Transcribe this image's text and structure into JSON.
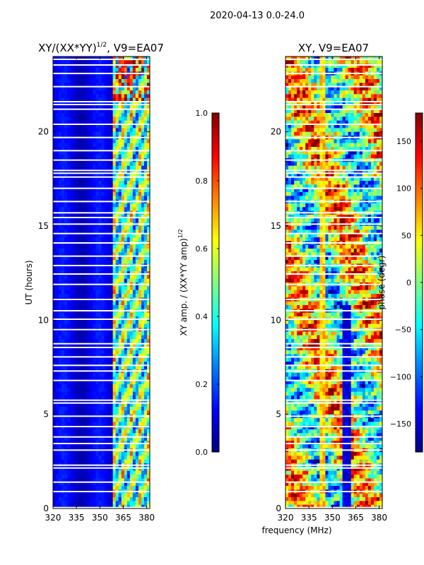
{
  "figure": {
    "suptitle": "2020-04-13 0.0-24.0",
    "shared_xlabel": "frequency (MHz)"
  },
  "colors": {
    "background": "#ffffff",
    "text": "#000000",
    "frame": "#000000",
    "gap_lines": "#ffffff"
  },
  "colormap": {
    "name": "jet",
    "stops": [
      "#00007f",
      "#0000ff",
      "#007fff",
      "#00ffff",
      "#7fff7f",
      "#ffff00",
      "#ff7f00",
      "#ff0000",
      "#7f0000"
    ]
  },
  "chart_data": [
    {
      "type": "heatmap",
      "title": "XY/(XX*YY)",
      "title_exponent": "1/2",
      "title_suffix": ", V9=EA07",
      "xlabel": "",
      "ylabel": "UT (hours)",
      "xlim": [
        320,
        382
      ],
      "ylim": [
        0,
        24
      ],
      "xticks": [
        320,
        335,
        350,
        365,
        380
      ],
      "yticks": [
        0,
        5,
        10,
        15,
        20
      ],
      "quantity": "amplitude",
      "bright_band_MHz": [
        359,
        382
      ],
      "colorbar": {
        "label": "XY amp. / (XX*YY amp)",
        "label_exponent": "1/2",
        "range": [
          0.0,
          1.0
        ],
        "ticks": [
          "0.0",
          "0.2",
          "0.4",
          "0.6",
          "0.8",
          "1.0"
        ],
        "tick_values": [
          0.0,
          0.2,
          0.4,
          0.6,
          0.8,
          1.0
        ]
      },
      "missing_rows_UT": [
        0.05,
        0.9,
        1.4,
        2.15,
        2.3,
        3.1,
        3.45,
        3.8,
        4.35,
        4.9,
        5.6,
        5.75,
        6.8,
        7.3,
        7.6,
        8.05,
        8.55,
        8.75,
        9.5,
        10.05,
        10.5,
        11.1,
        11.9,
        12.45,
        12.9,
        13.4,
        14.1,
        14.6,
        15.1,
        15.45,
        15.7,
        16.3,
        17.0,
        17.6,
        17.8,
        17.95,
        18.5,
        19.0,
        19.7,
        20.4,
        21.2,
        21.45,
        21.6,
        22.4,
        23.1,
        23.55,
        23.85
      ]
    },
    {
      "type": "heatmap",
      "title": "XY",
      "title_suffix": ", V9=EA07",
      "xlabel": "",
      "ylabel": "",
      "xlim": [
        320,
        382
      ],
      "ylim": [
        0,
        24
      ],
      "xticks": [
        320,
        335,
        350,
        365,
        380
      ],
      "yticks": [
        0,
        5,
        10,
        15,
        20
      ],
      "quantity": "phase",
      "colorbar": {
        "label": "phase (degr)",
        "range": [
          -180,
          180
        ],
        "ticks": [
          "−150",
          "−100",
          "−50",
          "0",
          "50",
          "100",
          "150"
        ],
        "tick_values": [
          -150,
          -100,
          -50,
          0,
          50,
          100,
          150
        ]
      },
      "missing_rows_UT": [
        0.05,
        0.9,
        1.4,
        2.15,
        2.3,
        3.1,
        3.45,
        3.8,
        4.35,
        4.9,
        5.6,
        5.75,
        6.8,
        7.3,
        7.6,
        8.05,
        8.55,
        8.75,
        9.5,
        10.05,
        10.5,
        11.1,
        11.9,
        12.45,
        12.9,
        13.4,
        14.1,
        14.6,
        15.1,
        15.45,
        15.7,
        16.3,
        17.0,
        17.6,
        17.8,
        17.95,
        18.5,
        19.0,
        19.7,
        20.4,
        21.2,
        21.45,
        21.6,
        22.4,
        23.1,
        23.55,
        23.85
      ]
    }
  ]
}
